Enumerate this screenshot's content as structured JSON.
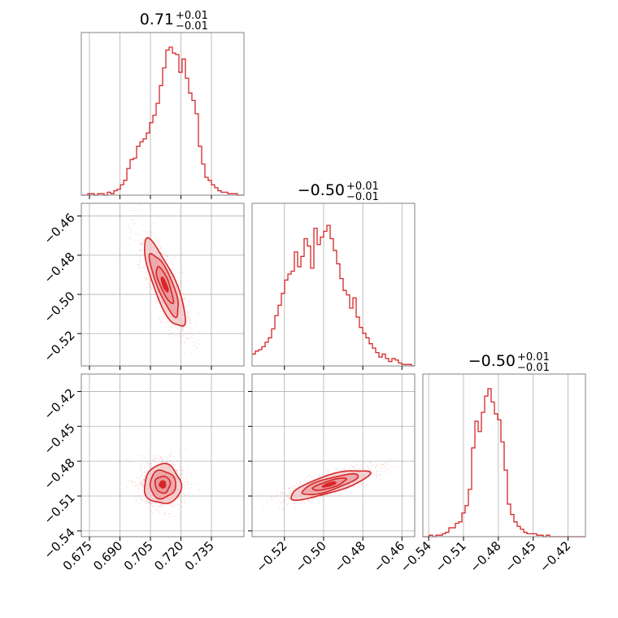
{
  "colors": {
    "accent": "#d62728",
    "fill_light": "#f2c4c6",
    "fill_mid": "#e98a8e",
    "grid": "#b0b0b0",
    "frame": "#808080"
  },
  "chart_data": [
    {
      "id": "hist-p1",
      "type": "histogram",
      "title": {
        "value": "0.71",
        "plus": "+0.01",
        "minus": "−0.01"
      },
      "xlim": [
        0.671,
        0.751
      ],
      "x_ticks": [
        0.675,
        0.69,
        0.705,
        0.72,
        0.735
      ],
      "x_tick_labels": [],
      "density": [
        0.0,
        0.0,
        0.01,
        0.01,
        0.0,
        0.01,
        0.01,
        0.0,
        0.02,
        0.01,
        0.03,
        0.04,
        0.07,
        0.1,
        0.18,
        0.24,
        0.25,
        0.33,
        0.36,
        0.38,
        0.42,
        0.49,
        0.54,
        0.62,
        0.74,
        0.86,
        0.98,
        1.0,
        0.96,
        0.95,
        0.83,
        0.92,
        0.79,
        0.69,
        0.64,
        0.55,
        0.33,
        0.21,
        0.12,
        0.1,
        0.07,
        0.05,
        0.03,
        0.02,
        0.02,
        0.01,
        0.01,
        0.01,
        0.0,
        0.0
      ]
    },
    {
      "id": "hist-p2",
      "type": "histogram",
      "title": {
        "value": "−0.50",
        "plus": "+0.01",
        "minus": "−0.01"
      },
      "xlim": [
        -0.5365,
        -0.4535
      ],
      "x_ticks": [
        -0.52,
        -0.5,
        -0.48,
        -0.46
      ],
      "x_tick_labels": [],
      "density": [
        0.08,
        0.1,
        0.11,
        0.13,
        0.16,
        0.19,
        0.25,
        0.34,
        0.41,
        0.49,
        0.58,
        0.62,
        0.64,
        0.77,
        0.67,
        0.74,
        0.86,
        0.81,
        0.66,
        0.93,
        0.82,
        0.87,
        0.91,
        0.95,
        0.86,
        0.78,
        0.69,
        0.59,
        0.51,
        0.48,
        0.39,
        0.46,
        0.33,
        0.26,
        0.22,
        0.19,
        0.15,
        0.12,
        0.09,
        0.06,
        0.08,
        0.05,
        0.03,
        0.05,
        0.04,
        0.02,
        0.01,
        0.01,
        0.01,
        0.0
      ]
    },
    {
      "id": "hist-p3",
      "type": "histogram",
      "title": {
        "value": "−0.50",
        "plus": "+0.01",
        "minus": "−0.01"
      },
      "xlim": [
        -0.545,
        -0.405
      ],
      "x_ticks": [
        -0.54,
        -0.51,
        -0.48,
        -0.45,
        -0.42
      ],
      "x_tick_labels": [
        "−0.54",
        "−0.51",
        "−0.48",
        "−0.45",
        "−0.42"
      ],
      "density": [
        0.0,
        0.0,
        0.01,
        0.0,
        0.01,
        0.01,
        0.02,
        0.03,
        0.06,
        0.06,
        0.09,
        0.1,
        0.16,
        0.21,
        0.32,
        0.6,
        0.78,
        0.71,
        0.84,
        0.95,
        1.0,
        0.91,
        0.83,
        0.79,
        0.64,
        0.45,
        0.22,
        0.15,
        0.1,
        0.07,
        0.05,
        0.03,
        0.02,
        0.02,
        0.02,
        0.01,
        0.01,
        0.0,
        0.01,
        0.0,
        0.0,
        0.0,
        0.0,
        0.0,
        0.0,
        0.0,
        0.0,
        0.0,
        0.0,
        0.0
      ]
    },
    {
      "id": "scatter-p1-p2",
      "type": "scatter-contour",
      "x_param": "p1",
      "y_param": "p2",
      "xlim": [
        0.671,
        0.751
      ],
      "ylim": [
        -0.5365,
        -0.4535
      ],
      "x_ticks": [
        0.675,
        0.69,
        0.705,
        0.72,
        0.735
      ],
      "x_tick_labels": [],
      "y_ticks": [
        -0.46,
        -0.48,
        -0.5,
        -0.52
      ],
      "y_tick_labels": [
        "−0.46",
        "−0.48",
        "−0.50",
        "−0.52"
      ],
      "center": [
        0.712,
        -0.495
      ],
      "levels": [
        {
          "sx": 0.0055,
          "sy": 0.024,
          "angle": 22,
          "fill": "light"
        },
        {
          "sx": 0.0038,
          "sy": 0.017,
          "angle": 22,
          "fill": "mid"
        },
        {
          "sx": 0.0022,
          "sy": 0.01,
          "angle": 22,
          "fill": "mid"
        },
        {
          "sx": 0.0009,
          "sy": 0.004,
          "angle": 22,
          "fill": "dark"
        }
      ]
    },
    {
      "id": "scatter-p1-p3",
      "type": "scatter-contour",
      "x_param": "p1",
      "y_param": "p3",
      "xlim": [
        0.671,
        0.751
      ],
      "ylim": [
        -0.545,
        -0.405
      ],
      "x_ticks": [
        0.675,
        0.69,
        0.705,
        0.72,
        0.735
      ],
      "x_tick_labels": [
        "0.675",
        "0.690",
        "0.705",
        "0.720",
        "0.735"
      ],
      "y_ticks": [
        -0.42,
        -0.45,
        -0.48,
        -0.51,
        -0.54
      ],
      "y_tick_labels": [
        "−0.42",
        "−0.45",
        "−0.48",
        "−0.51",
        "−0.54"
      ],
      "center": [
        0.711,
        -0.5
      ],
      "levels": [
        {
          "sx": 0.009,
          "sy": 0.017,
          "angle": 0,
          "fill": "light"
        },
        {
          "sx": 0.0063,
          "sy": 0.012,
          "angle": 0,
          "fill": "mid"
        },
        {
          "sx": 0.0037,
          "sy": 0.0072,
          "angle": 0,
          "fill": "mid"
        },
        {
          "sx": 0.0015,
          "sy": 0.003,
          "angle": 0,
          "fill": "dark"
        }
      ]
    },
    {
      "id": "scatter-p2-p3",
      "type": "scatter-contour",
      "x_param": "p2",
      "y_param": "p3",
      "xlim": [
        -0.5365,
        -0.4535
      ],
      "ylim": [
        -0.545,
        -0.405
      ],
      "x_ticks": [
        -0.52,
        -0.5,
        -0.48,
        -0.46
      ],
      "x_tick_labels": [
        "−0.52",
        "−0.50",
        "−0.48",
        "−0.46"
      ],
      "y_ticks": [
        -0.42,
        -0.45,
        -0.48,
        -0.51,
        -0.54
      ],
      "y_tick_labels": [],
      "center": [
        -0.497,
        -0.5
      ],
      "levels": [
        {
          "sx": 0.021,
          "sy": 0.0075,
          "angle": 17,
          "fill": "light"
        },
        {
          "sx": 0.015,
          "sy": 0.0052,
          "angle": 17,
          "fill": "mid"
        },
        {
          "sx": 0.0088,
          "sy": 0.0031,
          "angle": 17,
          "fill": "mid"
        },
        {
          "sx": 0.0035,
          "sy": 0.0013,
          "angle": 17,
          "fill": "dark"
        }
      ]
    }
  ]
}
